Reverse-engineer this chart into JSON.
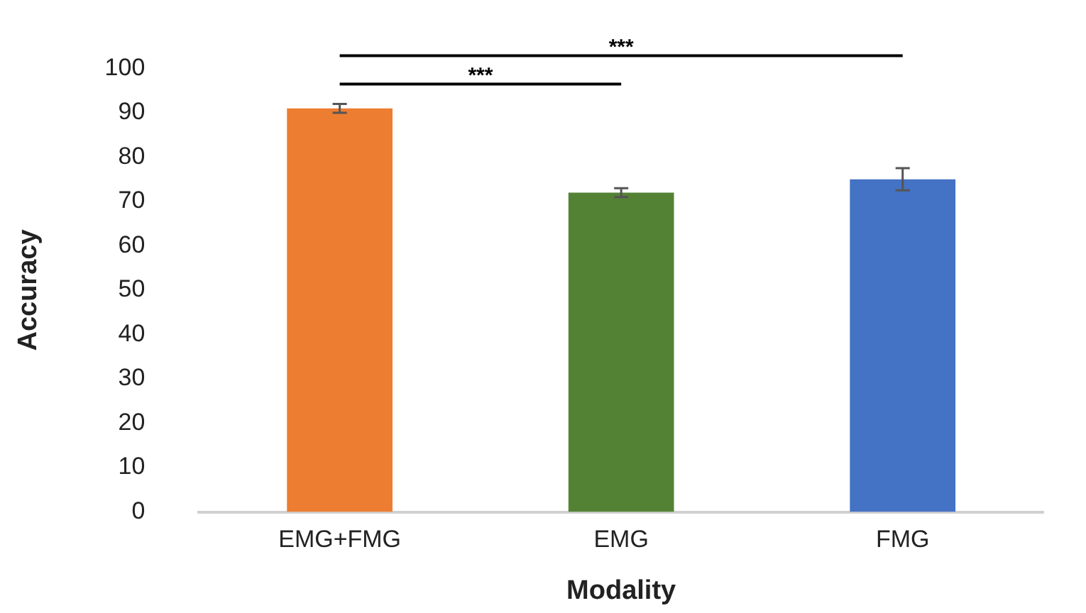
{
  "chart_data": {
    "type": "bar",
    "categories": [
      "EMG+FMG",
      "EMG",
      "FMG"
    ],
    "values": [
      91,
      72,
      75
    ],
    "colors": [
      "#ed7d31",
      "#548235",
      "#4472c4"
    ],
    "errors": [
      1,
      1,
      2.5
    ],
    "xlabel": "Modality",
    "ylabel": "Accuracy",
    "ylim": [
      0,
      100
    ],
    "yticks": [
      0,
      10,
      20,
      30,
      40,
      50,
      60,
      70,
      80,
      90,
      100
    ],
    "grid": false,
    "legend": false,
    "annotations": [
      "***",
      "***"
    ]
  }
}
